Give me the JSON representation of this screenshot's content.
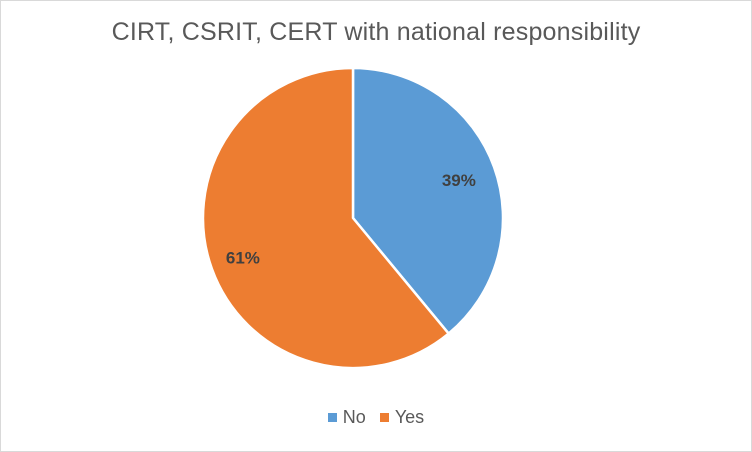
{
  "chart_data": {
    "type": "pie",
    "title": "CIRT, CSRIT, CERT with national responsibility",
    "categories": [
      "No",
      "Yes"
    ],
    "values": [
      39,
      61
    ],
    "labels": [
      "39%",
      "61%"
    ],
    "colors": [
      "#5b9bd5",
      "#ed7d31"
    ],
    "legend_position": "bottom"
  }
}
